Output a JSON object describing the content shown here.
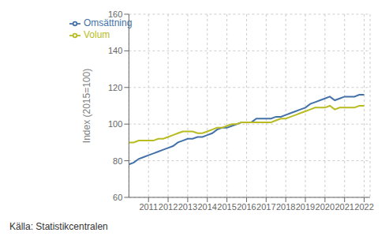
{
  "chart_data": {
    "type": "line",
    "ylabel": "Index (2015=100)",
    "annotation": "Källa: Statistikcentralen",
    "x": [
      2010.0,
      2010.25,
      2010.5,
      2010.75,
      2011.0,
      2011.25,
      2011.5,
      2011.75,
      2012.0,
      2012.25,
      2012.5,
      2012.75,
      2013.0,
      2013.25,
      2013.5,
      2013.75,
      2014.0,
      2014.25,
      2014.5,
      2014.75,
      2015.0,
      2015.25,
      2015.5,
      2015.75,
      2016.0,
      2016.25,
      2016.5,
      2016.75,
      2017.0,
      2017.25,
      2017.5,
      2017.75,
      2018.0,
      2018.25,
      2018.5,
      2018.75,
      2019.0,
      2019.25,
      2019.5,
      2019.75,
      2020.0,
      2020.25,
      2020.5,
      2020.75,
      2021.0,
      2021.25,
      2021.5,
      2021.75,
      2022.0
    ],
    "series": [
      {
        "name": "Omsättning",
        "color": "#4472a8",
        "values": [
          78,
          79,
          81,
          82,
          83,
          84,
          85,
          86,
          87,
          88,
          90,
          91,
          92,
          92,
          93,
          93,
          94,
          95,
          97,
          98,
          98,
          99,
          100,
          101,
          101,
          101,
          103,
          103,
          103,
          103,
          104,
          104,
          105,
          106,
          107,
          108,
          109,
          111,
          112,
          113,
          114,
          115,
          113,
          114,
          115,
          115,
          115,
          116,
          116
        ]
      },
      {
        "name": "Volum",
        "color": "#b8bc20",
        "values": [
          90,
          90,
          91,
          91,
          91,
          91,
          92,
          92,
          93,
          94,
          95,
          96,
          96,
          96,
          95,
          95,
          96,
          97,
          98,
          98,
          99,
          100,
          100,
          101,
          101,
          101,
          101,
          101,
          101,
          101,
          102,
          103,
          103,
          104,
          105,
          106,
          107,
          108,
          109,
          109,
          109,
          110,
          108,
          109,
          109,
          109,
          109,
          110,
          110
        ]
      }
    ],
    "xlim": [
      2010.0,
      2022.3
    ],
    "ylim": [
      60,
      160
    ],
    "xticks": [
      2011,
      2012,
      2013,
      2014,
      2015,
      2016,
      2017,
      2018,
      2019,
      2020,
      2021,
      2022
    ],
    "yticks": [
      60,
      80,
      100,
      120,
      140,
      160
    ],
    "grid": true,
    "legend": "upper left"
  }
}
